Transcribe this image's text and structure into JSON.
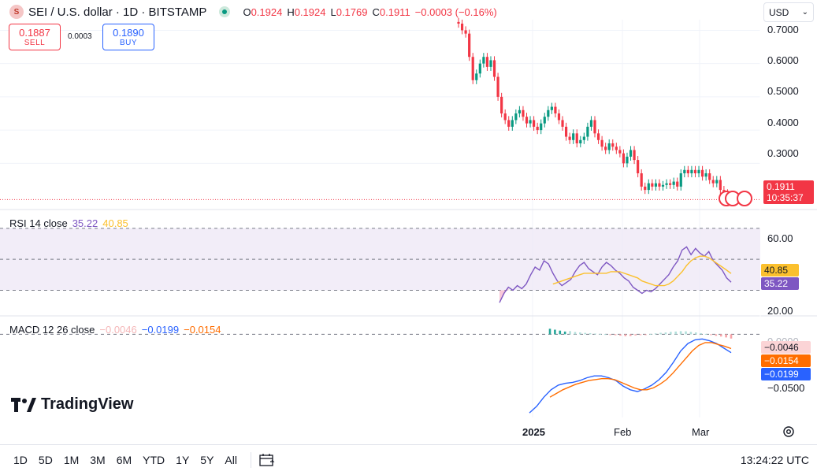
{
  "header": {
    "symbol_icon": "sei-logo-icon",
    "title": "SEI / U.S. dollar · 1D · BITSTAMP",
    "market_status_icon": "market-open-dot-icon",
    "ohlc": [
      {
        "k": "O",
        "v": "0.1924"
      },
      {
        "k": "H",
        "v": "0.1924"
      },
      {
        "k": "L",
        "v": "0.1769"
      },
      {
        "k": "C",
        "v": "0.1911"
      },
      {
        "k": "",
        "v": "−0.0003 (−0.16%)"
      }
    ]
  },
  "trade": {
    "sell_price": "0.1887",
    "sell_label": "SELL",
    "spread": "0.0003",
    "buy_price": "0.1890",
    "buy_label": "BUY"
  },
  "currency_select": {
    "value": "USD"
  },
  "price_axis": {
    "ticks": [
      "0.7000",
      "0.6000",
      "0.5000",
      "0.4000",
      "0.3000"
    ],
    "last_price": "0.1911",
    "countdown": "10:35:37"
  },
  "rsi": {
    "legend_name": "RSI 14 close",
    "rsi_value": "35.22",
    "ma_value": "40.85",
    "ticks": [
      "60.00",
      "20.00"
    ]
  },
  "macd": {
    "legend_name": "MACD 12 26 close",
    "hist_value": "−0.0046",
    "macd_value": "−0.0199",
    "signal_value": "−0.0154",
    "tick_top": "0.0000",
    "tick_bottom": "−0.0500",
    "tag_hist": "−0.0046",
    "tag_signal": "−0.0154",
    "tag_macd": "−0.0199"
  },
  "time_axis": {
    "labels": [
      "2025",
      "Feb",
      "Mar"
    ]
  },
  "branding": {
    "logo_text": "TradingView"
  },
  "bottom": {
    "ranges": [
      "1D",
      "5D",
      "1M",
      "3M",
      "6M",
      "YTD",
      "1Y",
      "5Y",
      "All"
    ],
    "compare_icon": "calendar-range-icon",
    "clock": "13:24:22 UTC",
    "settings_icon": "settings-gear-icon"
  },
  "colors": {
    "up": "#089981",
    "down": "#f23645",
    "rsi": "#7e57c2",
    "rsi_ma": "#fbc02d",
    "macd": "#2962ff",
    "signal": "#ff6d00"
  },
  "chart_data": [
    {
      "type": "candlestick",
      "title": "SEI / U.S. dollar · 1D · BITSTAMP",
      "x_labels": [
        "2025",
        "Feb",
        "Mar"
      ],
      "ylim": [
        0.18,
        0.72
      ],
      "y_ticks": [
        0.3,
        0.4,
        0.5,
        0.6,
        0.7
      ],
      "grid": true,
      "close": [
        0.72,
        0.7,
        0.69,
        0.62,
        0.55,
        0.57,
        0.6,
        0.62,
        0.59,
        0.61,
        0.56,
        0.5,
        0.45,
        0.43,
        0.41,
        0.43,
        0.45,
        0.46,
        0.44,
        0.42,
        0.43,
        0.41,
        0.4,
        0.42,
        0.44,
        0.46,
        0.47,
        0.45,
        0.43,
        0.41,
        0.38,
        0.37,
        0.39,
        0.36,
        0.37,
        0.38,
        0.41,
        0.43,
        0.39,
        0.37,
        0.35,
        0.34,
        0.36,
        0.35,
        0.34,
        0.33,
        0.3,
        0.32,
        0.34,
        0.31,
        0.27,
        0.23,
        0.22,
        0.24,
        0.23,
        0.24,
        0.23,
        0.235,
        0.24,
        0.235,
        0.245,
        0.23,
        0.27,
        0.28,
        0.27,
        0.28,
        0.27,
        0.28,
        0.26,
        0.27,
        0.25,
        0.24,
        0.25,
        0.22,
        0.21,
        0.2,
        0.1911
      ],
      "last": 0.1911
    },
    {
      "type": "line",
      "name": "RSI 14 close",
      "ylim": [
        15,
        75
      ],
      "y_ticks": [
        20,
        60
      ],
      "bands": [
        30,
        50,
        70
      ],
      "rsi": [
        22,
        28,
        32,
        30,
        33,
        31,
        34,
        40,
        45,
        43,
        49,
        47,
        41,
        36,
        33,
        35,
        37,
        42,
        46,
        48,
        44,
        42,
        40,
        45,
        48,
        46,
        43,
        41,
        38,
        36,
        32,
        30,
        28,
        30,
        29,
        31,
        34,
        37,
        40,
        45,
        49,
        56,
        58,
        53,
        57,
        54,
        52,
        55,
        49,
        46,
        43,
        38,
        35.22
      ],
      "rsi_ma": [
        null,
        null,
        null,
        null,
        null,
        null,
        null,
        null,
        null,
        null,
        null,
        null,
        34,
        35,
        36,
        37,
        38,
        39,
        40,
        41,
        41,
        41,
        41,
        41,
        41,
        42,
        42,
        42,
        41,
        40,
        39,
        38,
        36,
        35,
        34,
        33,
        33,
        33,
        34,
        36,
        39,
        42,
        46,
        49,
        51,
        52,
        52,
        51,
        49,
        47,
        45,
        43,
        40.85
      ]
    },
    {
      "type": "bar",
      "name": "MACD 12 26 close",
      "ylim": [
        -0.09,
        0.008
      ],
      "y_ticks": [
        0.0,
        -0.05
      ],
      "histogram": [
        0.006,
        0.005,
        0.004,
        0.003,
        0.0035,
        0.0025,
        0.002,
        0.0015,
        0.0012,
        0.0008,
        0.0004,
        0.0002,
        -0.0005,
        -0.001,
        -0.0015,
        -0.002,
        -0.0018,
        -0.0012,
        -0.0006,
        -0.0002,
        0.0004,
        0.001,
        0.0016,
        0.002,
        0.0026,
        0.003,
        0.0034,
        0.0032,
        0.0026,
        0.002,
        0.0012,
        0.0004,
        -0.0008,
        -0.0016,
        -0.0024,
        -0.0034,
        -0.0046
      ],
      "macd": [
        -0.085,
        -0.078,
        -0.068,
        -0.06,
        -0.055,
        -0.053,
        -0.052,
        -0.05,
        -0.047,
        -0.045,
        -0.045,
        -0.047,
        -0.05,
        -0.056,
        -0.06,
        -0.062,
        -0.059,
        -0.055,
        -0.049,
        -0.041,
        -0.03,
        -0.018,
        -0.01,
        -0.006,
        -0.005,
        -0.007,
        -0.01,
        -0.015,
        -0.0199
      ],
      "signal": [
        -0.068,
        -0.064,
        -0.06,
        -0.057,
        -0.054,
        -0.052,
        -0.05,
        -0.049,
        -0.048,
        -0.048,
        -0.049,
        -0.052,
        -0.055,
        -0.058,
        -0.06,
        -0.06,
        -0.058,
        -0.054,
        -0.049,
        -0.042,
        -0.034,
        -0.026,
        -0.018,
        -0.012,
        -0.009,
        -0.009,
        -0.011,
        -0.013,
        -0.0154
      ]
    }
  ]
}
